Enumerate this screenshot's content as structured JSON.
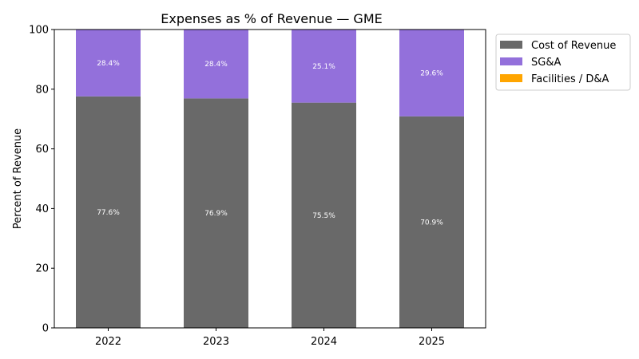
{
  "chart_data": {
    "type": "bar",
    "stacked": true,
    "title": "Expenses as % of Revenue — GME",
    "xlabel": "",
    "ylabel": "Percent of Revenue",
    "categories": [
      "2022",
      "2023",
      "2024",
      "2025"
    ],
    "ylim": [
      0,
      100
    ],
    "yticks": [
      0,
      20,
      40,
      60,
      80,
      100
    ],
    "legend_position": "outside top-right",
    "grid": false,
    "series": [
      {
        "name": "Cost of Revenue",
        "color": "#696969",
        "values": [
          77.6,
          76.9,
          75.5,
          70.9
        ],
        "labels": [
          "77.6%",
          "76.9%",
          "75.5%",
          "70.9%"
        ]
      },
      {
        "name": "SG&A",
        "color": "#9370db",
        "values": [
          28.4,
          28.4,
          25.1,
          29.6
        ],
        "labels": [
          "28.4%",
          "28.4%",
          "25.1%",
          "29.6%"
        ]
      },
      {
        "name": "Facilities / D&A",
        "color": "#ffa500",
        "values": [
          0,
          0,
          0,
          0
        ],
        "labels": []
      }
    ]
  }
}
